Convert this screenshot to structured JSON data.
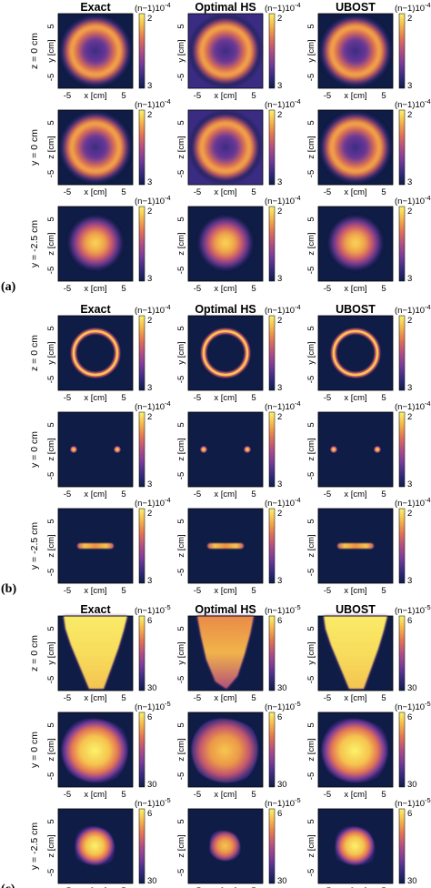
{
  "column_titles": [
    "Exact",
    "Optimal HS",
    "UBOST"
  ],
  "x_axis_label": "x [cm]",
  "x_ticks": [
    "-5",
    "5"
  ],
  "y_ticks": [
    "5",
    "-5"
  ],
  "panels": [
    {
      "label": "(a)",
      "unit": "(n−1)10",
      "exponent": "-4",
      "rows": [
        {
          "row_label": "z = 0 cm",
          "axis_label": "y [cm]",
          "cbar_top": "2",
          "cbar_bottom": "3",
          "pattern": "ring"
        },
        {
          "row_label": "y = 0 cm",
          "axis_label": "z [cm]",
          "cbar_top": "2",
          "cbar_bottom": "3",
          "pattern": "ring"
        },
        {
          "row_label": "y = -2.5 cm",
          "axis_label": "z [cm]",
          "cbar_top": "2",
          "cbar_bottom": "3",
          "pattern": "disk"
        }
      ]
    },
    {
      "label": "(b)",
      "unit": "(n−1)10",
      "exponent": "-4",
      "rows": [
        {
          "row_label": "z = 0 cm",
          "axis_label": "y [cm]",
          "cbar_top": "2",
          "cbar_bottom": "3",
          "pattern": "thin-ring"
        },
        {
          "row_label": "y = 0 cm",
          "axis_label": "z [cm]",
          "cbar_top": "2",
          "cbar_bottom": "3",
          "pattern": "two-dots"
        },
        {
          "row_label": "y = -2.5 cm",
          "axis_label": "z [cm]",
          "cbar_top": "2",
          "cbar_bottom": "3",
          "pattern": "bar"
        }
      ]
    },
    {
      "label": "(c)",
      "unit": "(n−1)10",
      "exponent": "-5",
      "rows": [
        {
          "row_label": "z = 0 cm",
          "axis_label": "y [cm]",
          "cbar_top": "6",
          "cbar_bottom": "30",
          "pattern": "plume"
        },
        {
          "row_label": "y = 0 cm",
          "axis_label": "z [cm]",
          "cbar_top": "6",
          "cbar_bottom": "30",
          "pattern": "blob"
        },
        {
          "row_label": "y = -2.5 cm",
          "axis_label": "z [cm]",
          "cbar_top": "6",
          "cbar_bottom": "30",
          "pattern": "small-blob"
        }
      ]
    }
  ],
  "colors": {
    "background_dark": "#0f1c45",
    "colormap": [
      "#0d1d48",
      "#3a2c82",
      "#7a3c99",
      "#b34e84",
      "#e27355",
      "#f6b449",
      "#fbf36a"
    ]
  }
}
